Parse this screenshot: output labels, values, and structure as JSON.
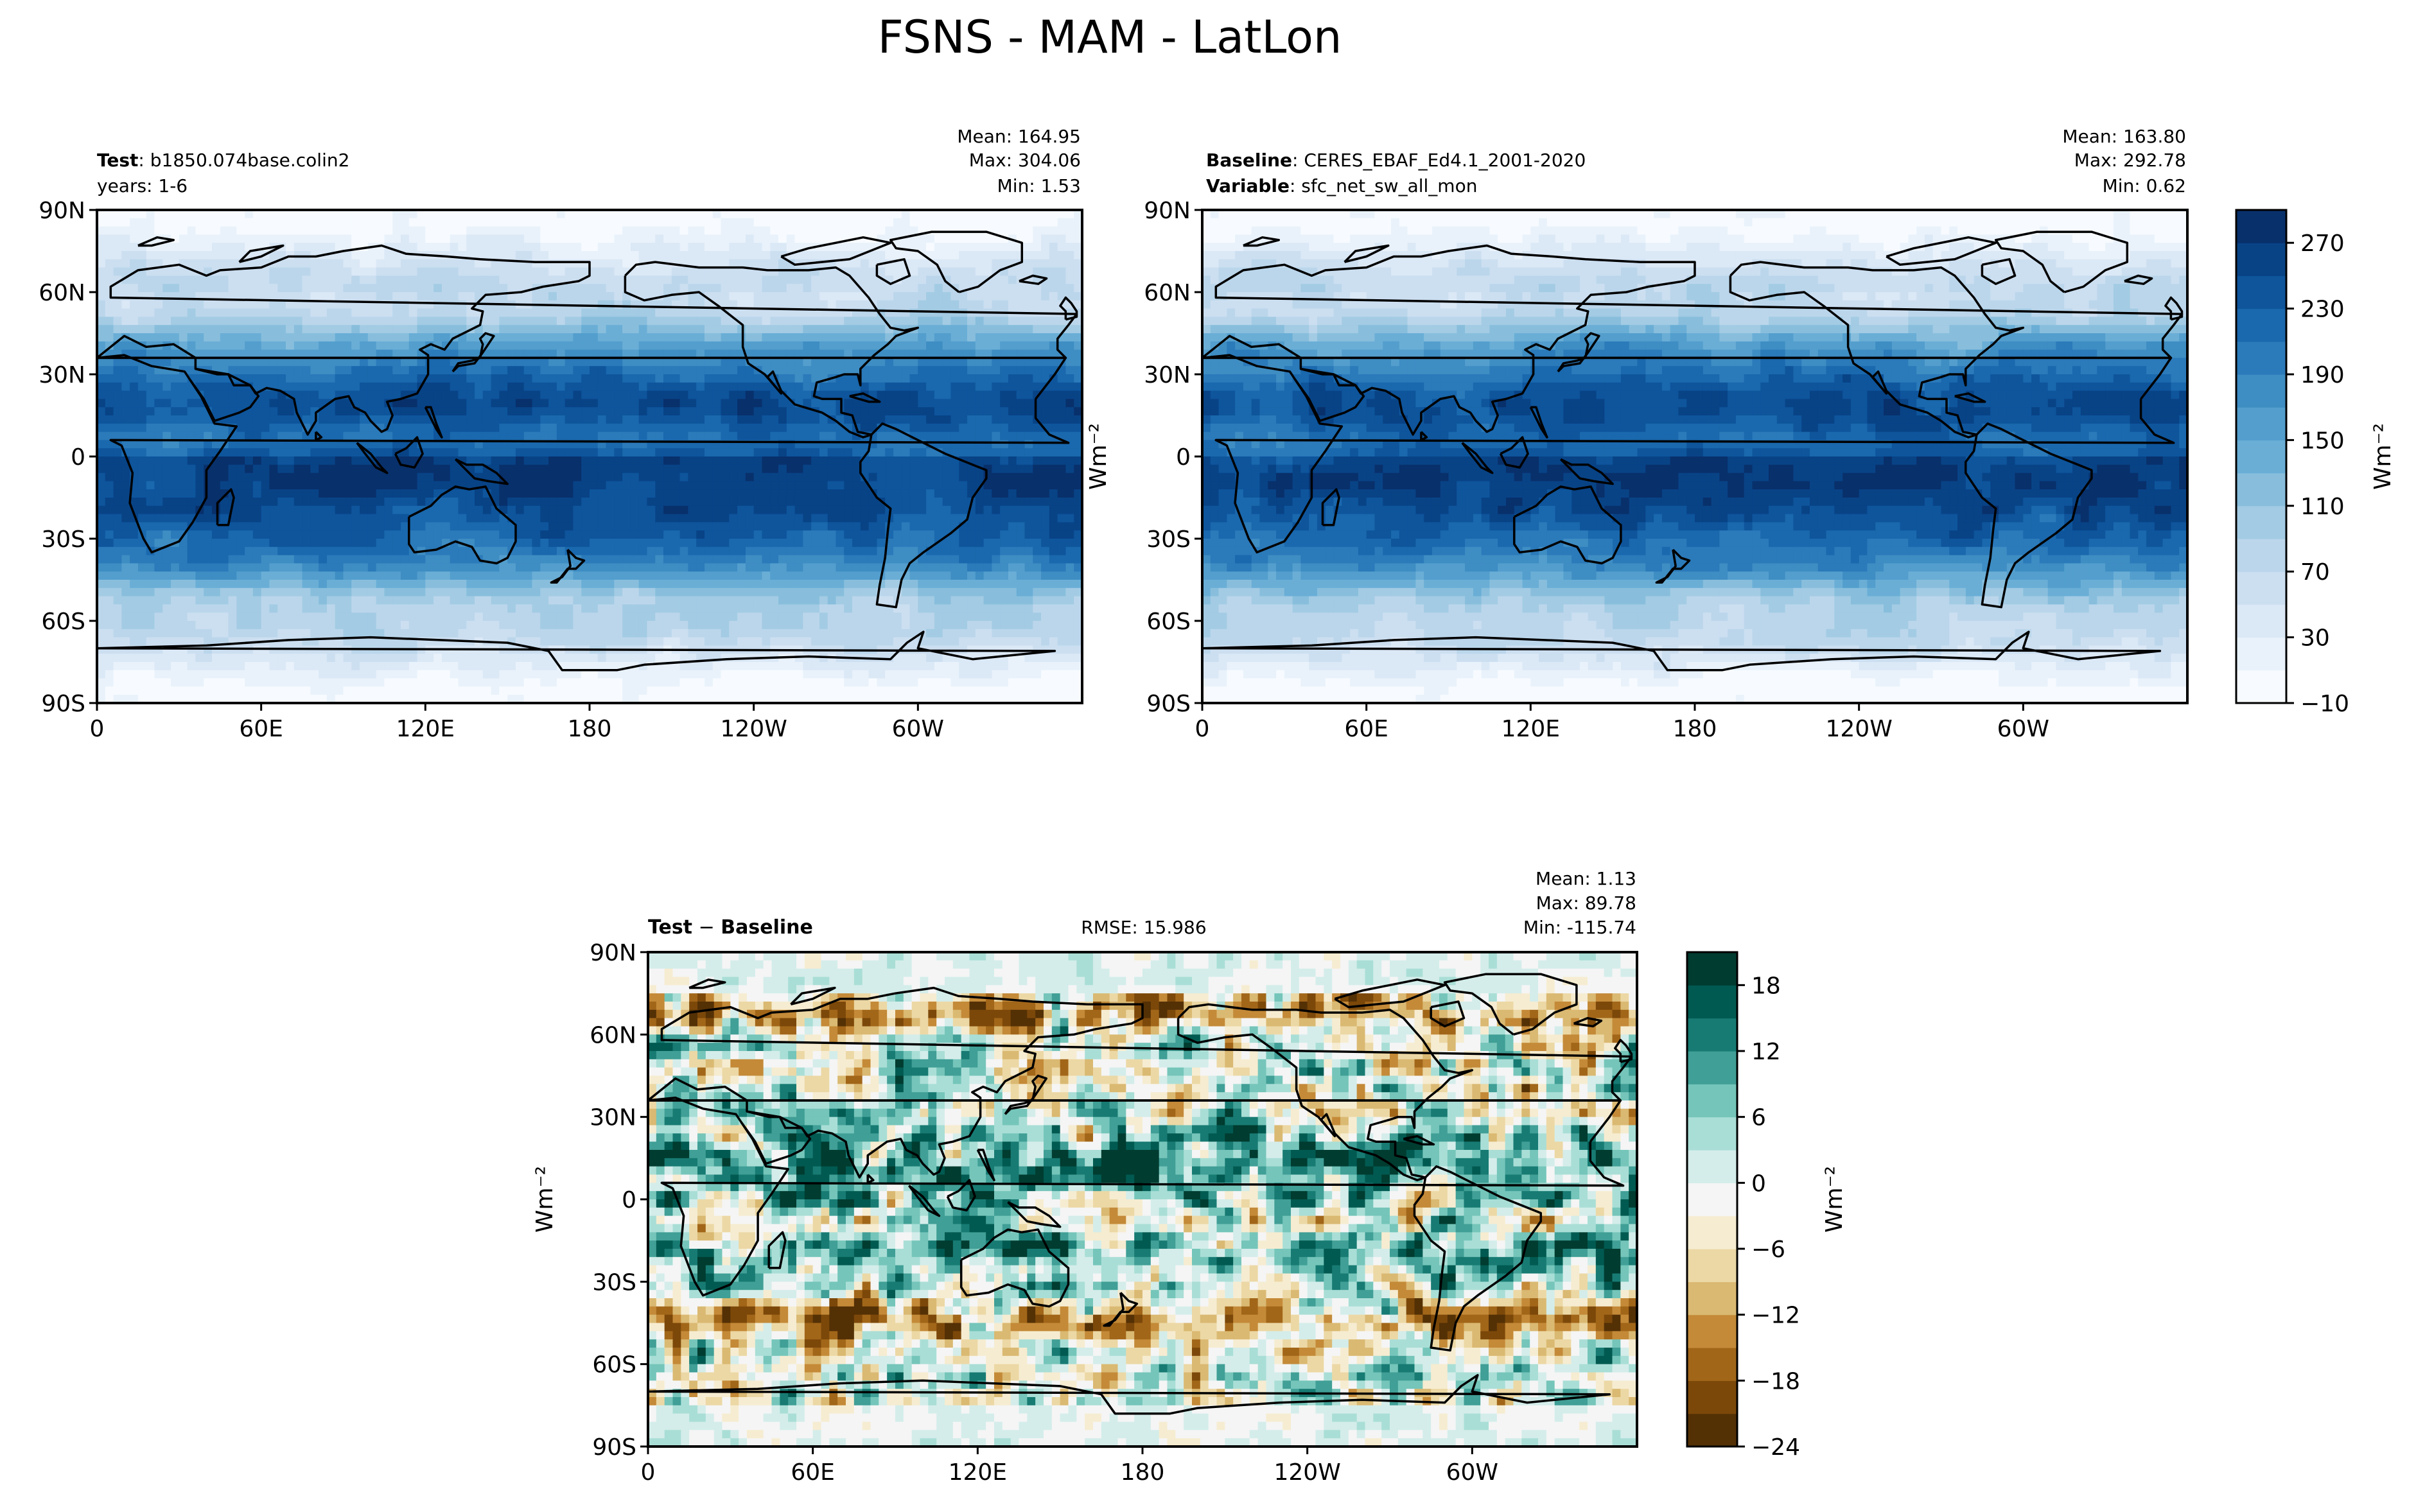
{
  "figure": {
    "title": "FSNS - MAM - LatLon"
  },
  "colors": {
    "blues": [
      "#f7fbff",
      "#e3eef9",
      "#d0e1f2",
      "#b7d4ea",
      "#94c4df",
      "#6aaed6",
      "#4a98c9",
      "#2e7ebc",
      "#1764ab",
      "#084a91",
      "#08306b"
    ],
    "brbg": [
      "#543005",
      "#8c510a",
      "#bf812d",
      "#dfc27d",
      "#f6e8c3",
      "#f5f5f5",
      "#c7eae5",
      "#80cdc1",
      "#35978f",
      "#01665e",
      "#003c30"
    ]
  },
  "panels": {
    "test": {
      "label_bold": "Test",
      "label_text": ": b1850.074base.colin2",
      "years": "years: 1-6",
      "mean": "Mean: 164.95",
      "max": "Max: 304.06",
      "min": "Min:  1.53"
    },
    "baseline": {
      "label_bold": "Baseline",
      "label_text": ": CERES_EBAF_Ed4.1_2001-2020",
      "var_bold": "Variable",
      "var_text": ": sfc_net_sw_all_mon",
      "mean": "Mean: 163.80",
      "max": "Max: 292.78",
      "min": "Min:  0.62"
    },
    "diff": {
      "label_a": "Test",
      "label_op": " − ",
      "label_b": "Baseline",
      "rmse": "RMSE: 15.986",
      "mean": "Mean:  1.13",
      "max": "Max: 89.78",
      "min": "Min: -115.74"
    }
  },
  "units": "Wm⁻²",
  "chart_data": [
    {
      "type": "heatmap",
      "panel": "test",
      "xlabel": "",
      "ylabel": "",
      "xticks": [
        "0",
        "60E",
        "120E",
        "180",
        "120W",
        "60W"
      ],
      "xtick_values": [
        0,
        60,
        120,
        180,
        240,
        300
      ],
      "yticks": [
        "90N",
        "60N",
        "30N",
        "0",
        "30S",
        "60S",
        "90S"
      ],
      "ytick_values": [
        90,
        60,
        30,
        0,
        -30,
        -60,
        -90
      ],
      "xlim": [
        0,
        360
      ],
      "ylim": [
        -90,
        90
      ],
      "mean": 164.95,
      "max": 304.06,
      "min": 1.53
    },
    {
      "type": "heatmap",
      "panel": "baseline",
      "ylabel": "Wm⁻²",
      "xticks": [
        "0",
        "60E",
        "120E",
        "180",
        "120W",
        "60W"
      ],
      "xtick_values": [
        0,
        60,
        120,
        180,
        240,
        300
      ],
      "yticks": [
        "90N",
        "60N",
        "30N",
        "0",
        "30S",
        "60S",
        "90S"
      ],
      "ytick_values": [
        90,
        60,
        30,
        0,
        -30,
        -60,
        -90
      ],
      "xlim": [
        0,
        360
      ],
      "ylim": [
        -90,
        90
      ],
      "mean": 163.8,
      "max": 292.78,
      "min": 0.62,
      "colorbar": {
        "label": "Wm⁻²",
        "ticks": [
          "270",
          "230",
          "190",
          "150",
          "110",
          "70",
          "30",
          "−10"
        ],
        "tick_values": [
          270,
          230,
          190,
          150,
          110,
          70,
          30,
          -10
        ],
        "range": [
          -10,
          290
        ]
      }
    },
    {
      "type": "heatmap",
      "panel": "diff",
      "ylabel": "Wm⁻²",
      "xticks": [
        "0",
        "60E",
        "120E",
        "180",
        "120W",
        "60W"
      ],
      "xtick_values": [
        0,
        60,
        120,
        180,
        240,
        300
      ],
      "yticks": [
        "90N",
        "60N",
        "30N",
        "0",
        "30S",
        "60S",
        "90S"
      ],
      "ytick_values": [
        90,
        60,
        30,
        0,
        -30,
        -60,
        -90
      ],
      "xlim": [
        0,
        360
      ],
      "ylim": [
        -90,
        90
      ],
      "mean": 1.13,
      "max": 89.78,
      "min": -115.74,
      "rmse": 15.986,
      "colorbar": {
        "label": "Wm⁻²",
        "ticks": [
          "18",
          "12",
          "6",
          "0",
          "−6",
          "−12",
          "−18",
          "−24"
        ],
        "tick_values": [
          18,
          12,
          6,
          0,
          -6,
          -12,
          -18,
          -24
        ],
        "range": [
          -24,
          21
        ]
      }
    }
  ]
}
